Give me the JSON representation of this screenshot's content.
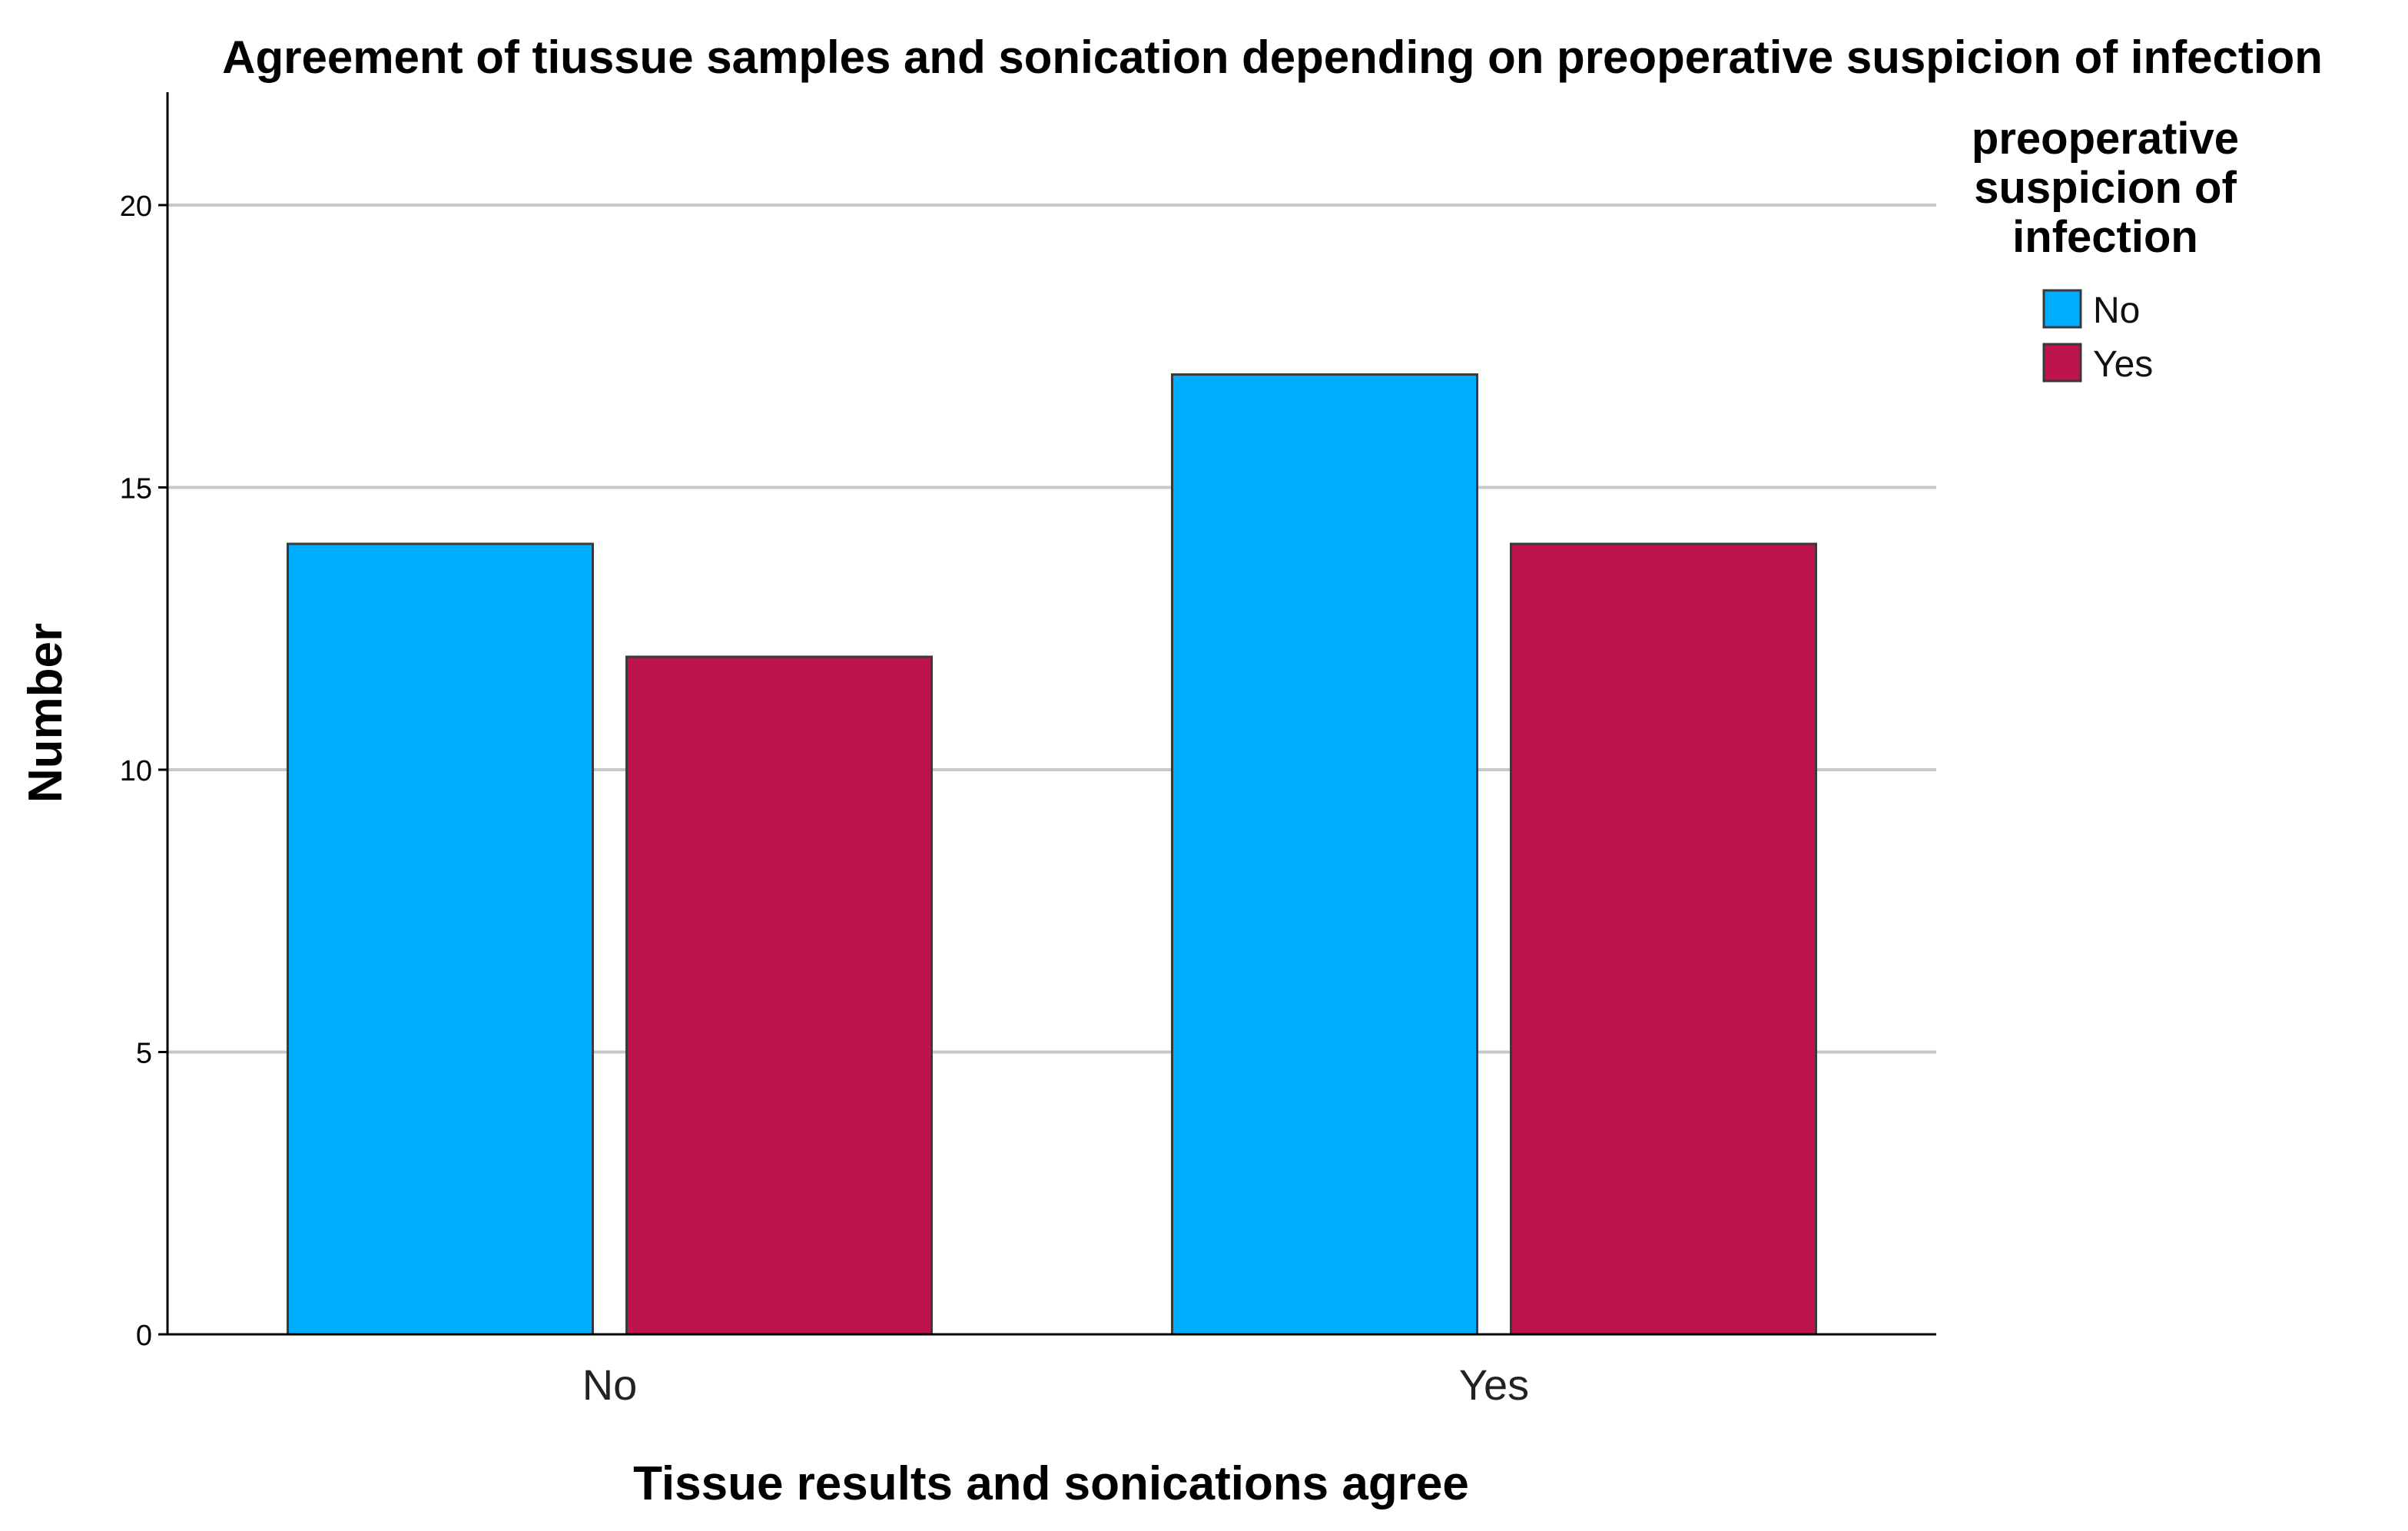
{
  "chart_data": {
    "type": "bar",
    "title": "Agreement of tiussue samples and sonication depending on preoperative suspicion of infection",
    "xlabel": "Tissue results and sonications agree",
    "ylabel": "Number",
    "categories": [
      "No",
      "Yes"
    ],
    "series": [
      {
        "name": "No",
        "values": [
          14,
          17
        ],
        "color": "#00aeff"
      },
      {
        "name": "Yes",
        "values": [
          12,
          14
        ],
        "color": "#bd134f"
      }
    ],
    "ylim": [
      0,
      22
    ],
    "yticks": [
      "0",
      "5",
      "10",
      "15",
      "20"
    ],
    "grid": true,
    "legend": {
      "title_lines": [
        "preoperative",
        "suspicion of",
        "infection"
      ],
      "placement": "right"
    }
  }
}
